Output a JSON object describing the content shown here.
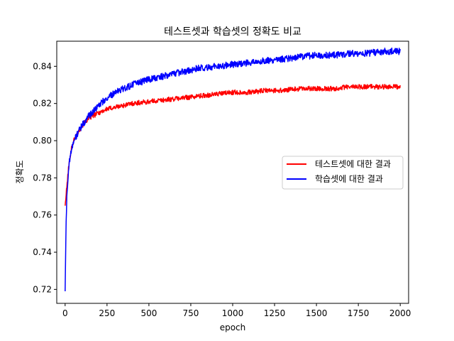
{
  "chart_data": {
    "type": "line",
    "title": "테스트셋과 학습셋의 정확도 비교",
    "xlabel": "epoch",
    "ylabel": "정확도",
    "xlim": [
      -50,
      2050
    ],
    "ylim": [
      0.7125,
      0.8535
    ],
    "xticks": [
      0,
      250,
      500,
      750,
      1000,
      1250,
      1500,
      1750,
      2000
    ],
    "yticks": [
      0.72,
      0.74,
      0.76,
      0.78,
      0.8,
      0.82,
      0.84
    ],
    "ytick_labels": [
      "0.72",
      "0.74",
      "0.76",
      "0.78",
      "0.80",
      "0.82",
      "0.84"
    ],
    "grid": false,
    "legend_position": "center-right",
    "series": [
      {
        "name": "테스트셋에 대한 결과",
        "color": "#ff0000",
        "x": [
          0,
          5,
          10,
          20,
          30,
          40,
          60,
          80,
          100,
          130,
          160,
          200,
          250,
          300,
          350,
          400,
          500,
          600,
          700,
          800,
          900,
          1000,
          1100,
          1200,
          1300,
          1400,
          1500,
          1600,
          1700,
          1800,
          1900,
          2000
        ],
        "y": [
          0.765,
          0.77,
          0.775,
          0.785,
          0.792,
          0.797,
          0.802,
          0.805,
          0.808,
          0.811,
          0.813,
          0.815,
          0.817,
          0.818,
          0.819,
          0.82,
          0.821,
          0.822,
          0.823,
          0.824,
          0.825,
          0.826,
          0.826,
          0.827,
          0.827,
          0.828,
          0.828,
          0.828,
          0.829,
          0.829,
          0.829,
          0.829
        ],
        "noise": 0.0013
      },
      {
        "name": "학습셋에 대한 결과",
        "color": "#0000ff",
        "x": [
          0,
          5,
          10,
          20,
          30,
          40,
          60,
          80,
          100,
          130,
          160,
          200,
          250,
          300,
          350,
          400,
          500,
          600,
          700,
          800,
          900,
          1000,
          1100,
          1200,
          1300,
          1400,
          1500,
          1600,
          1700,
          1800,
          1900,
          2000
        ],
        "y": [
          0.719,
          0.752,
          0.77,
          0.784,
          0.792,
          0.797,
          0.801,
          0.805,
          0.808,
          0.812,
          0.815,
          0.819,
          0.823,
          0.826,
          0.828,
          0.83,
          0.833,
          0.835,
          0.837,
          0.839,
          0.84,
          0.841,
          0.842,
          0.843,
          0.844,
          0.845,
          0.846,
          0.846,
          0.847,
          0.847,
          0.848,
          0.848
        ],
        "noise": 0.0018
      }
    ]
  }
}
